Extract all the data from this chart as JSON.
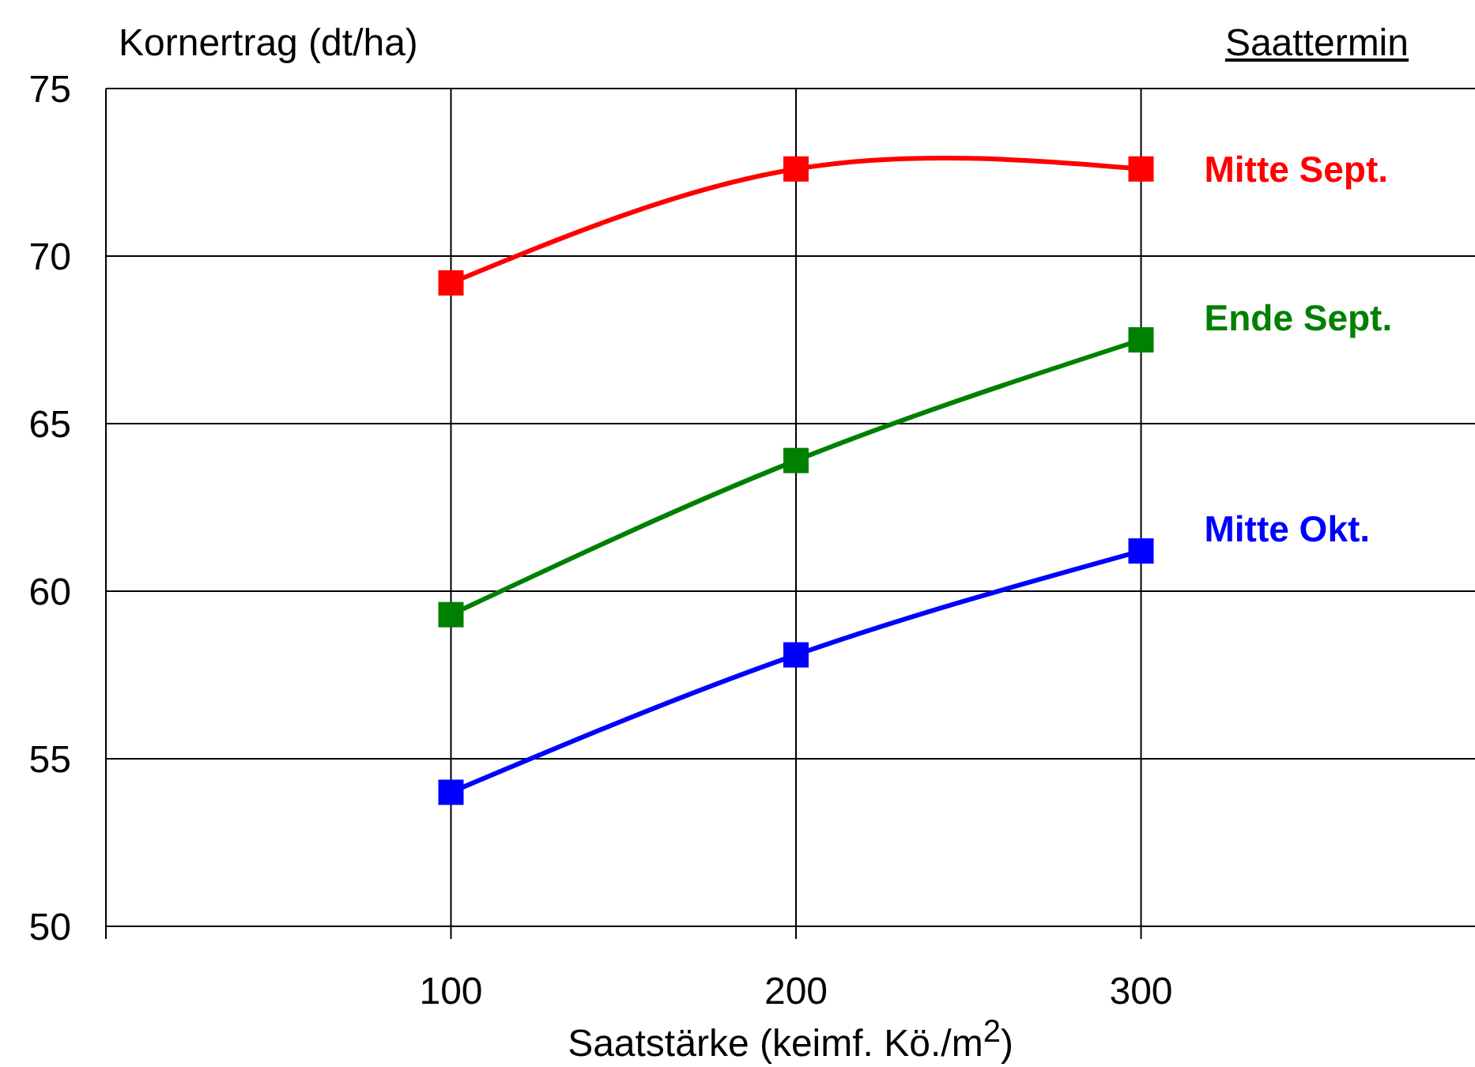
{
  "chart_data": {
    "type": "line",
    "ylabel": "Kornertrag (dt/ha)",
    "xlabel": "Saatstärke (keimf. Kö./m$^{2}$)",
    "legend_title": "Saattermin",
    "x": [
      100,
      200,
      300
    ],
    "series": [
      {
        "name": "Mitte Sept.",
        "color": "#ff0000",
        "values": [
          69.2,
          72.6,
          72.6
        ]
      },
      {
        "name": "Ende Sept.",
        "color": "#008000",
        "values": [
          59.3,
          63.9,
          67.5
        ]
      },
      {
        "name": "Mitte Okt.",
        "color": "#0000ff",
        "values": [
          54.0,
          58.1,
          61.2
        ]
      }
    ],
    "xlim": [
      0,
      400
    ],
    "xticks": [
      {
        "value": 0,
        "label": null
      },
      100,
      200,
      300
    ],
    "ylim": [
      50,
      75
    ],
    "yticks": [
      50,
      55,
      60,
      65,
      70,
      75
    ],
    "grid": true,
    "marker": "square",
    "line_style": "solid"
  }
}
